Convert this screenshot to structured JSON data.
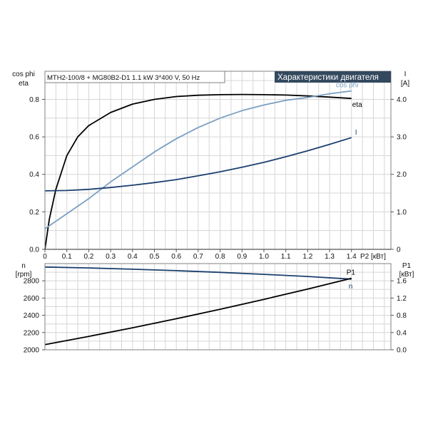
{
  "colors": {
    "eta": "#000000",
    "cos_phi": "#7a9fc2",
    "current": "#1b3f6e",
    "speed": "#1b3f6e",
    "p1": "#000000",
    "grid": "#d6d6d6",
    "frame": "#808080",
    "title_bg": "#34495e",
    "title_fg": "#ffffff"
  },
  "chart_data": [
    {
      "type": "line",
      "title": "Характеристики двигателя",
      "subtitle": "MTH2-100/8 + MG80B2-D1   1.1 kW   3*400 V, 50 Hz",
      "xlabel": "P2 [кВт]",
      "ylabel_left": [
        "cos phi",
        "eta"
      ],
      "ylabel_right": [
        "I",
        "[A]"
      ],
      "xlim": [
        0,
        1.58
      ],
      "ylim_left": [
        0,
        0.95
      ],
      "ylim_right": [
        0,
        4.75
      ],
      "x_ticks": [
        "0",
        "0.1",
        "0.2",
        "0.3",
        "0.4",
        "0.5",
        "0.6",
        "0.7",
        "0.8",
        "0.9",
        "1.0",
        "1.1",
        "1.2",
        "1.3",
        "1.4"
      ],
      "y_ticks_left": [
        "0.0",
        "0.2",
        "0.4",
        "0.6",
        "0.8"
      ],
      "y_ticks_right": [
        "0",
        "1.0",
        "2.0",
        "3.0",
        "4.0"
      ],
      "grid": true,
      "series": [
        {
          "name": "eta",
          "axis": "left",
          "x": [
            0,
            0.02,
            0.05,
            0.1,
            0.15,
            0.2,
            0.3,
            0.4,
            0.5,
            0.6,
            0.7,
            0.8,
            0.9,
            1.0,
            1.1,
            1.2,
            1.3,
            1.4
          ],
          "y": [
            0,
            0.16,
            0.32,
            0.5,
            0.6,
            0.66,
            0.73,
            0.775,
            0.8,
            0.815,
            0.822,
            0.825,
            0.826,
            0.825,
            0.823,
            0.818,
            0.812,
            0.805
          ]
        },
        {
          "name": "cos phi",
          "axis": "left",
          "x": [
            0,
            0.1,
            0.2,
            0.3,
            0.4,
            0.5,
            0.6,
            0.7,
            0.8,
            0.9,
            1.0,
            1.1,
            1.2,
            1.3,
            1.4
          ],
          "y": [
            0.11,
            0.19,
            0.27,
            0.36,
            0.44,
            0.52,
            0.59,
            0.65,
            0.7,
            0.74,
            0.77,
            0.795,
            0.81,
            0.83,
            0.845
          ]
        },
        {
          "name": "I",
          "axis": "right",
          "x": [
            0,
            0.1,
            0.2,
            0.3,
            0.4,
            0.5,
            0.6,
            0.7,
            0.8,
            0.9,
            1.0,
            1.1,
            1.2,
            1.3,
            1.4
          ],
          "y": [
            1.56,
            1.57,
            1.6,
            1.65,
            1.71,
            1.78,
            1.86,
            1.96,
            2.07,
            2.19,
            2.32,
            2.47,
            2.63,
            2.8,
            2.98
          ]
        }
      ]
    },
    {
      "type": "line",
      "xlim": [
        0,
        1.58
      ],
      "ylabel_left": [
        "n",
        "[rpm]"
      ],
      "ylabel_right": [
        "P1",
        "[кВт]"
      ],
      "ylim_left": [
        2000,
        3000
      ],
      "ylim_right": [
        0,
        2.0
      ],
      "y_ticks_left": [
        "2000",
        "2200",
        "2400",
        "2600",
        "2800"
      ],
      "y_ticks_right": [
        "0.0",
        "0.4",
        "0.8",
        "1.2",
        "1.6"
      ],
      "grid": true,
      "series": [
        {
          "name": "n",
          "axis": "left",
          "x": [
            0,
            0.2,
            0.4,
            0.6,
            0.8,
            1.0,
            1.2,
            1.4
          ],
          "y": [
            2960,
            2950,
            2935,
            2918,
            2898,
            2875,
            2850,
            2820
          ]
        },
        {
          "name": "P1",
          "axis": "right",
          "x": [
            0,
            0.2,
            0.4,
            0.6,
            0.8,
            1.0,
            1.2,
            1.4
          ],
          "y": [
            0.12,
            0.31,
            0.51,
            0.72,
            0.94,
            1.17,
            1.41,
            1.66
          ]
        }
      ]
    }
  ]
}
